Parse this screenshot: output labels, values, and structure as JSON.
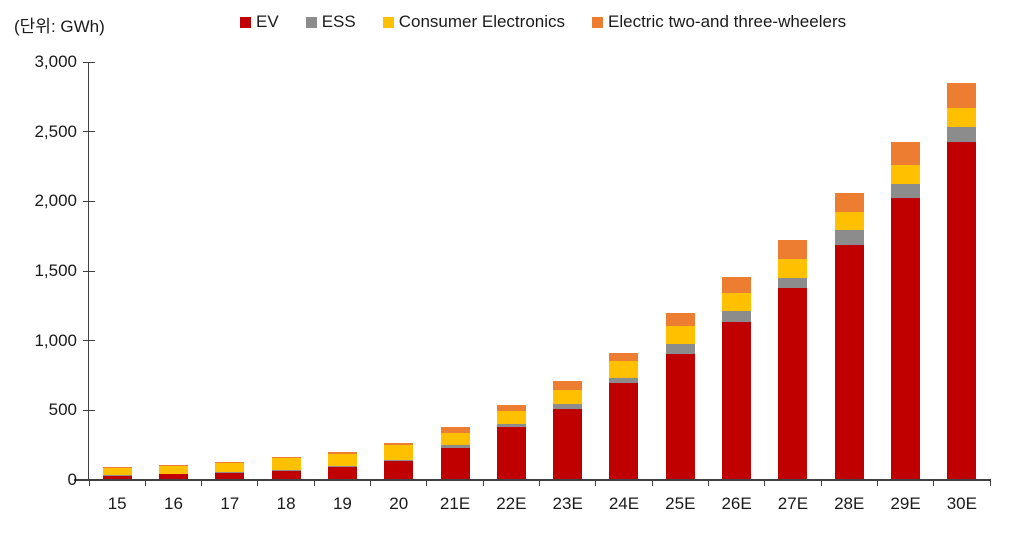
{
  "header": {
    "unit_label": "(단위: GWh)"
  },
  "chart_data": {
    "type": "bar",
    "stacked": true,
    "title": "",
    "ylabel": "GWh",
    "xlabel": "",
    "grid": false,
    "legend_position": "top",
    "ylim": [
      0,
      3000
    ],
    "ytick_step": 500,
    "ytick_labels": [
      "0",
      "500",
      "1,000",
      "1,500",
      "2,000",
      "2,500",
      "3,000"
    ],
    "categories": [
      "15",
      "16",
      "17",
      "18",
      "19",
      "20",
      "21E",
      "22E",
      "23E",
      "24E",
      "25E",
      "26E",
      "27E",
      "28E",
      "29E",
      "30E"
    ],
    "series": [
      {
        "name": "EV",
        "color": "#C00000",
        "values": [
          25,
          35,
          45,
          60,
          85,
          130,
          225,
          375,
          505,
          690,
          900,
          1130,
          1370,
          1680,
          2020,
          2420
        ]
      },
      {
        "name": "ESS",
        "color": "#8C8C8C",
        "values": [
          3,
          3,
          5,
          5,
          6,
          8,
          18,
          18,
          30,
          35,
          70,
          77,
          75,
          110,
          95,
          110
        ]
      },
      {
        "name": "Consumer Electronics",
        "color": "#FFC000",
        "values": [
          50,
          55,
          65,
          85,
          90,
          105,
          85,
          95,
          105,
          122,
          127,
          131,
          131,
          125,
          140,
          135
        ]
      },
      {
        "name": "Electric two-and three-wheelers",
        "color": "#ED7D31",
        "values": [
          7,
          8,
          10,
          10,
          11,
          12,
          45,
          40,
          60,
          60,
          93,
          110,
          140,
          135,
          165,
          175
        ]
      }
    ],
    "colors": {
      "axis": "#404040",
      "text": "#1a1a1a"
    }
  }
}
